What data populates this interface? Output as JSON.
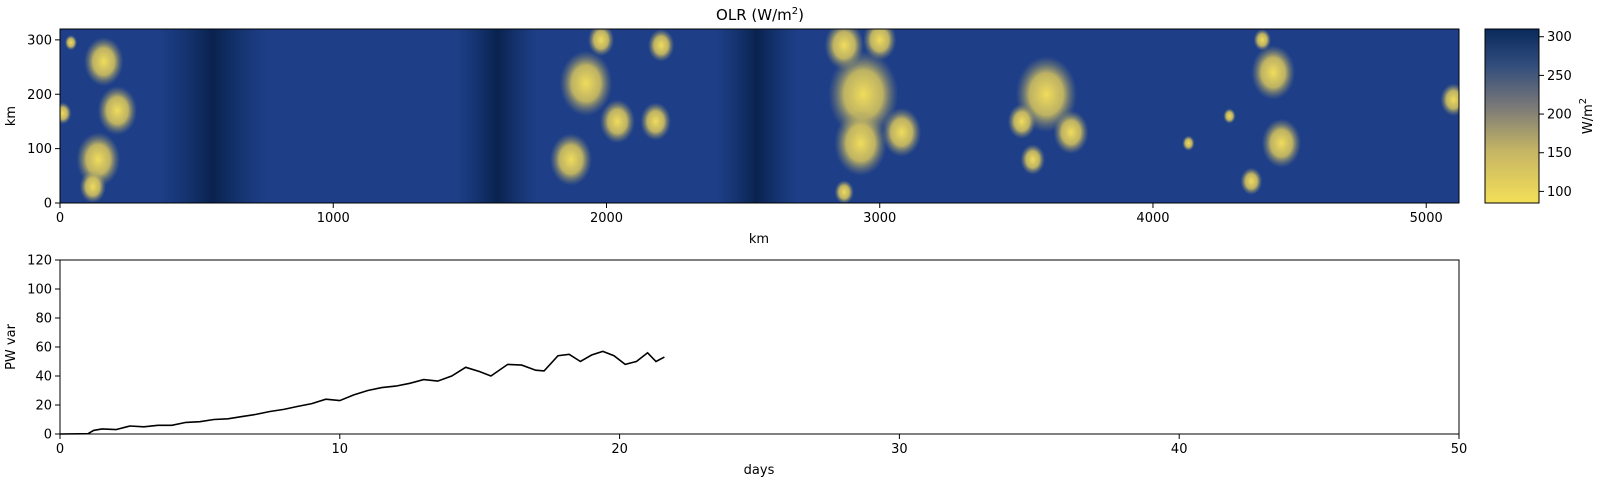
{
  "chart_data": [
    {
      "type": "heatmap",
      "title_main": "OLR (W/m",
      "title_sup": "2",
      "title_tail": ")",
      "xlabel": "km",
      "ylabel": "km",
      "xlim": [
        0,
        5120
      ],
      "ylim": [
        0,
        320
      ],
      "xticks": [
        "0",
        "1000",
        "2000",
        "3000",
        "4000",
        "5000"
      ],
      "yticks": [
        "0",
        "100",
        "200",
        "300"
      ],
      "colormap": "cividis (reversed)",
      "colors": {
        "high": "#0a2a5c",
        "mid": "#1e3f88",
        "gray": "#7b7a78",
        "low": "#f4df58"
      },
      "colorbar": {
        "label_main": "W/m",
        "label_sup": "2",
        "range": [
          85,
          310
        ],
        "ticks": [
          "100",
          "150",
          "200",
          "250",
          "300"
        ]
      },
      "cold_clouds": [
        {
          "x": 40,
          "y": 295,
          "r": 14
        },
        {
          "x": 160,
          "y": 260,
          "r": 45
        },
        {
          "x": 210,
          "y": 170,
          "r": 45
        },
        {
          "x": 140,
          "y": 80,
          "r": 50
        },
        {
          "x": 120,
          "y": 30,
          "r": 30
        },
        {
          "x": 10,
          "y": 165,
          "r": 20
        },
        {
          "x": 1925,
          "y": 220,
          "r": 60
        },
        {
          "x": 1870,
          "y": 80,
          "r": 48
        },
        {
          "x": 1980,
          "y": 300,
          "r": 30
        },
        {
          "x": 2040,
          "y": 150,
          "r": 40
        },
        {
          "x": 2180,
          "y": 150,
          "r": 35
        },
        {
          "x": 2200,
          "y": 290,
          "r": 30
        },
        {
          "x": 2870,
          "y": 290,
          "r": 45
        },
        {
          "x": 3000,
          "y": 300,
          "r": 38
        },
        {
          "x": 2940,
          "y": 200,
          "r": 80
        },
        {
          "x": 2930,
          "y": 110,
          "r": 60
        },
        {
          "x": 2870,
          "y": 20,
          "r": 22
        },
        {
          "x": 3080,
          "y": 130,
          "r": 45
        },
        {
          "x": 3610,
          "y": 200,
          "r": 70
        },
        {
          "x": 3700,
          "y": 130,
          "r": 40
        },
        {
          "x": 3520,
          "y": 150,
          "r": 32
        },
        {
          "x": 3560,
          "y": 80,
          "r": 28
        },
        {
          "x": 4130,
          "y": 110,
          "r": 14
        },
        {
          "x": 4280,
          "y": 160,
          "r": 14
        },
        {
          "x": 4440,
          "y": 240,
          "r": 50
        },
        {
          "x": 4470,
          "y": 110,
          "r": 45
        },
        {
          "x": 4360,
          "y": 40,
          "r": 25
        },
        {
          "x": 4400,
          "y": 300,
          "r": 20
        },
        {
          "x": 5100,
          "y": 190,
          "r": 30
        }
      ],
      "dark_bands": [
        {
          "x": 560,
          "w": 400
        },
        {
          "x": 1600,
          "w": 300
        },
        {
          "x": 2550,
          "w": 300
        }
      ]
    },
    {
      "type": "line",
      "xlabel": "days",
      "ylabel": "PW var",
      "xlim": [
        0,
        50
      ],
      "ylim": [
        0,
        120
      ],
      "xticks": [
        "0",
        "10",
        "20",
        "30",
        "40",
        "50"
      ],
      "yticks": [
        "0",
        "20",
        "40",
        "60",
        "80",
        "100",
        "120"
      ],
      "color": "#000000",
      "points": [
        [
          0,
          0
        ],
        [
          1.0,
          0.2
        ],
        [
          1.2,
          2.5
        ],
        [
          1.5,
          3.5
        ],
        [
          2.0,
          3.0
        ],
        [
          2.5,
          5.5
        ],
        [
          3.0,
          5.0
        ],
        [
          3.5,
          6.0
        ],
        [
          4.0,
          6.0
        ],
        [
          4.5,
          8.0
        ],
        [
          5.0,
          8.5
        ],
        [
          5.5,
          10.0
        ],
        [
          6.0,
          10.5
        ],
        [
          6.5,
          12.0
        ],
        [
          7.0,
          13.5
        ],
        [
          7.5,
          15.5
        ],
        [
          8.0,
          17.0
        ],
        [
          8.5,
          19.0
        ],
        [
          9.0,
          21.0
        ],
        [
          9.5,
          24.0
        ],
        [
          10.0,
          23.0
        ],
        [
          10.5,
          27.0
        ],
        [
          11.0,
          30.0
        ],
        [
          11.5,
          32.0
        ],
        [
          12.0,
          33.0
        ],
        [
          12.5,
          35.0
        ],
        [
          13.0,
          37.5
        ],
        [
          13.5,
          36.5
        ],
        [
          14.0,
          40.0
        ],
        [
          14.5,
          46.0
        ],
        [
          15.0,
          43.0
        ],
        [
          15.4,
          40.0
        ],
        [
          16.0,
          48.0
        ],
        [
          16.5,
          47.5
        ],
        [
          17.0,
          44.0
        ],
        [
          17.3,
          43.5
        ],
        [
          17.8,
          54.0
        ],
        [
          18.2,
          55.0
        ],
        [
          18.6,
          50.0
        ],
        [
          19.0,
          54.5
        ],
        [
          19.4,
          57.0
        ],
        [
          19.8,
          54.0
        ],
        [
          20.2,
          48.0
        ],
        [
          20.6,
          50.0
        ],
        [
          21.0,
          56.0
        ],
        [
          21.3,
          50.0
        ],
        [
          21.6,
          53.0
        ]
      ]
    }
  ]
}
